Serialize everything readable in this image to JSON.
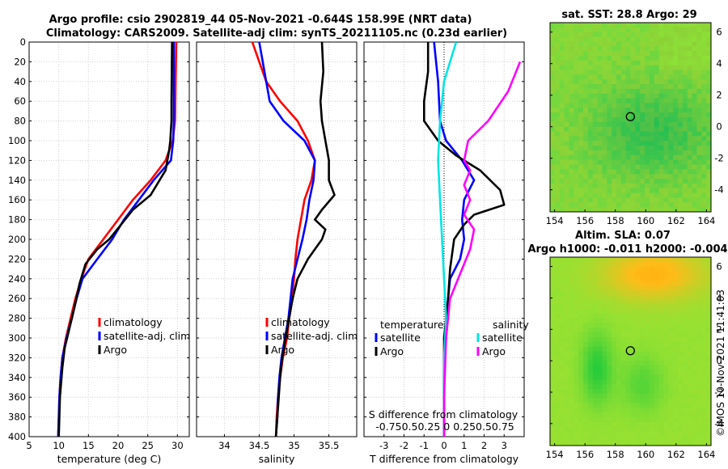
{
  "header": {
    "line1": "Argo profile: csio 2902819_44 05-Nov-2021 -0.644S 158.99E (NRT data)",
    "line2": "Climatology: CARS2009. Satellite-adj clim: synTS_20211105.nc (0.23d earlier)"
  },
  "credit": "©IMOS 10-Nov-2021 11:41:03",
  "colors": {
    "climatology": "#ff0000",
    "satellite": "#0000ff",
    "argo": "#000000",
    "sat_salinity": "#00e5e5",
    "argo_salinity": "#ff00ff",
    "zero_line": "#000000"
  },
  "chart_data": [
    {
      "type": "line",
      "id": "temperature",
      "xlabel": "temperature (deg C)",
      "ylabel": "depth",
      "xlim": [
        5,
        32
      ],
      "ylim": [
        0,
        400
      ],
      "xticks": [
        5,
        10,
        15,
        20,
        25,
        30
      ],
      "yticks": [
        0,
        20,
        40,
        60,
        80,
        100,
        120,
        140,
        160,
        180,
        200,
        220,
        240,
        260,
        280,
        300,
        320,
        340,
        360,
        380,
        400
      ],
      "legend": [
        "climatology",
        "satellite-adj. clim",
        "Argo"
      ],
      "legend_position": "lower-right",
      "grid": true,
      "series": [
        {
          "name": "climatology",
          "color_key": "climatology",
          "points": [
            [
              29.8,
              0
            ],
            [
              29.7,
              40
            ],
            [
              29.6,
              80
            ],
            [
              29.2,
              100
            ],
            [
              28.0,
              120
            ],
            [
              25.5,
              140
            ],
            [
              22.5,
              160
            ],
            [
              20.0,
              180
            ],
            [
              17.5,
              200
            ],
            [
              15.0,
              220
            ],
            [
              13.8,
              240
            ],
            [
              12.8,
              260
            ],
            [
              12.0,
              280
            ],
            [
              11.2,
              300
            ],
            [
              10.6,
              320
            ],
            [
              10.3,
              340
            ],
            [
              10.1,
              360
            ],
            [
              10.0,
              380
            ],
            [
              9.9,
              400
            ]
          ]
        },
        {
          "name": "satellite-adj. clim",
          "color_key": "satellite",
          "points": [
            [
              29.4,
              0
            ],
            [
              29.4,
              40
            ],
            [
              29.4,
              80
            ],
            [
              29.3,
              100
            ],
            [
              28.9,
              120
            ],
            [
              26.0,
              140
            ],
            [
              23.5,
              160
            ],
            [
              21.0,
              180
            ],
            [
              19.0,
              200
            ],
            [
              16.5,
              220
            ],
            [
              14.0,
              240
            ],
            [
              13.0,
              260
            ],
            [
              12.2,
              280
            ],
            [
              11.3,
              300
            ],
            [
              10.6,
              320
            ],
            [
              10.3,
              340
            ],
            [
              10.1,
              360
            ],
            [
              10.0,
              380
            ],
            [
              9.9,
              400
            ]
          ]
        },
        {
          "name": "Argo",
          "color_key": "argo",
          "points": [
            [
              29.1,
              0
            ],
            [
              29.0,
              60
            ],
            [
              29.0,
              80
            ],
            [
              28.8,
              100
            ],
            [
              28.6,
              110
            ],
            [
              28.3,
              120
            ],
            [
              28.0,
              130
            ],
            [
              25.5,
              155
            ],
            [
              22.5,
              170
            ],
            [
              20.5,
              185
            ],
            [
              18.5,
              200
            ],
            [
              16.5,
              210
            ],
            [
              14.5,
              225
            ],
            [
              13.5,
              245
            ],
            [
              12.6,
              270
            ],
            [
              11.8,
              290
            ],
            [
              11.0,
              310
            ],
            [
              10.6,
              330
            ],
            [
              10.2,
              360
            ],
            [
              10.0,
              400
            ]
          ]
        }
      ]
    },
    {
      "type": "line",
      "id": "salinity",
      "xlabel": "salinity",
      "ylabel": "",
      "xlim": [
        33.6,
        35.9
      ],
      "ylim": [
        0,
        400
      ],
      "xticks": [
        34,
        34.5,
        35,
        35.5
      ],
      "legend": [
        "climatology",
        "satellite-adj. clim",
        "Argo"
      ],
      "legend_position": "lower-right",
      "grid": true,
      "series": [
        {
          "name": "climatology",
          "color_key": "climatology",
          "points": [
            [
              34.4,
              0
            ],
            [
              34.5,
              20
            ],
            [
              34.6,
              40
            ],
            [
              34.8,
              60
            ],
            [
              35.05,
              80
            ],
            [
              35.2,
              100
            ],
            [
              35.3,
              120
            ],
            [
              35.25,
              140
            ],
            [
              35.15,
              160
            ],
            [
              35.1,
              180
            ],
            [
              35.05,
              200
            ],
            [
              35.02,
              220
            ],
            [
              35.0,
              240
            ],
            [
              34.97,
              260
            ],
            [
              34.93,
              280
            ],
            [
              34.9,
              300
            ],
            [
              34.84,
              320
            ],
            [
              34.8,
              340
            ],
            [
              34.77,
              360
            ],
            [
              34.75,
              380
            ],
            [
              34.74,
              400
            ]
          ]
        },
        {
          "name": "satellite-adj. clim",
          "color_key": "satellite",
          "points": [
            [
              34.5,
              0
            ],
            [
              34.55,
              20
            ],
            [
              34.6,
              40
            ],
            [
              34.65,
              60
            ],
            [
              34.85,
              80
            ],
            [
              35.15,
              100
            ],
            [
              35.3,
              120
            ],
            [
              35.28,
              140
            ],
            [
              35.22,
              160
            ],
            [
              35.18,
              180
            ],
            [
              35.12,
              200
            ],
            [
              35.05,
              220
            ],
            [
              34.98,
              240
            ],
            [
              34.95,
              260
            ],
            [
              34.92,
              280
            ],
            [
              34.87,
              300
            ],
            [
              34.82,
              320
            ],
            [
              34.79,
              340
            ],
            [
              34.77,
              360
            ],
            [
              34.76,
              380
            ],
            [
              34.74,
              400
            ]
          ]
        },
        {
          "name": "Argo",
          "color_key": "argo",
          "points": [
            [
              35.4,
              0
            ],
            [
              35.42,
              30
            ],
            [
              35.38,
              60
            ],
            [
              35.4,
              80
            ],
            [
              35.45,
              100
            ],
            [
              35.5,
              120
            ],
            [
              35.5,
              140
            ],
            [
              35.58,
              155
            ],
            [
              35.4,
              170
            ],
            [
              35.3,
              180
            ],
            [
              35.45,
              190
            ],
            [
              35.4,
              200
            ],
            [
              35.3,
              210
            ],
            [
              35.2,
              220
            ],
            [
              35.05,
              240
            ],
            [
              34.98,
              260
            ],
            [
              34.93,
              280
            ],
            [
              34.88,
              300
            ],
            [
              34.83,
              320
            ],
            [
              34.8,
              340
            ],
            [
              34.78,
              360
            ],
            [
              34.76,
              380
            ],
            [
              34.74,
              400
            ]
          ]
        }
      ]
    },
    {
      "type": "line",
      "id": "difference",
      "xlabel": "T difference from climatology",
      "xlabel_top": "S difference from climatology",
      "top_tick_labels": [
        "-0.75",
        "0.5",
        "0.25",
        "0",
        "0.25",
        "0.5",
        "0.75"
      ],
      "top_tick_text": "-0.750.50.25  0  0.250.50.75",
      "xlim": [
        -4,
        4
      ],
      "ylim": [
        0,
        400
      ],
      "xticks": [
        -3,
        -2,
        -1,
        0,
        1,
        2,
        3
      ],
      "grid": true,
      "legend_groups": [
        {
          "title": "temperature",
          "entries": [
            "satellite",
            "Argo"
          ]
        },
        {
          "title": "salinity",
          "entries": [
            "satellite",
            "Argo"
          ]
        }
      ],
      "legend_position": "lower-center",
      "series": [
        {
          "name": "temperature satellite",
          "color_key": "satellite",
          "points": [
            [
              -0.5,
              0
            ],
            [
              -0.3,
              40
            ],
            [
              -0.2,
              80
            ],
            [
              0.1,
              100
            ],
            [
              0.9,
              120
            ],
            [
              1.5,
              140
            ],
            [
              1.0,
              160
            ],
            [
              0.9,
              180
            ],
            [
              1.0,
              200
            ],
            [
              0.8,
              220
            ],
            [
              0.3,
              240
            ],
            [
              0.2,
              260
            ],
            [
              0.1,
              280
            ],
            [
              0.1,
              300
            ],
            [
              0.0,
              320
            ],
            [
              0.0,
              340
            ],
            [
              0.0,
              360
            ],
            [
              0.0,
              380
            ],
            [
              0.0,
              400
            ]
          ]
        },
        {
          "name": "temperature Argo",
          "color_key": "argo",
          "points": [
            [
              -0.8,
              0
            ],
            [
              -0.8,
              30
            ],
            [
              -1.0,
              60
            ],
            [
              -1.0,
              80
            ],
            [
              -0.3,
              100
            ],
            [
              0.6,
              115
            ],
            [
              1.8,
              130
            ],
            [
              2.8,
              150
            ],
            [
              3.0,
              165
            ],
            [
              1.5,
              175
            ],
            [
              1.0,
              185
            ],
            [
              0.5,
              200
            ],
            [
              0.3,
              230
            ],
            [
              0.2,
              260
            ],
            [
              0.0,
              300
            ],
            [
              0.0,
              340
            ],
            [
              0.0,
              400
            ]
          ]
        },
        {
          "name": "salinity satellite",
          "color_key": "sat_salinity",
          "points": [
            [
              0.6,
              0
            ],
            [
              0.3,
              20
            ],
            [
              0.0,
              40
            ],
            [
              -0.2,
              80
            ],
            [
              -0.3,
              120
            ],
            [
              -0.2,
              160
            ],
            [
              -0.1,
              200
            ],
            [
              0.0,
              240
            ],
            [
              0.1,
              280
            ],
            [
              0.0,
              320
            ],
            [
              0.0,
              360
            ],
            [
              0.0,
              400
            ]
          ]
        },
        {
          "name": "salinity Argo",
          "color_key": "argo_salinity",
          "points": [
            [
              3.8,
              20
            ],
            [
              3.2,
              50
            ],
            [
              2.2,
              80
            ],
            [
              1.2,
              100
            ],
            [
              1.0,
              120
            ],
            [
              1.3,
              130
            ],
            [
              1.0,
              145
            ],
            [
              1.3,
              160
            ],
            [
              1.0,
              175
            ],
            [
              1.5,
              190
            ],
            [
              1.3,
              210
            ],
            [
              0.9,
              230
            ],
            [
              0.3,
              260
            ],
            [
              0.1,
              300
            ],
            [
              0.0,
              360
            ],
            [
              0.0,
              400
            ]
          ]
        }
      ]
    },
    {
      "type": "heatmap",
      "id": "sat-sst-map",
      "title": "sat. SST: 28.8 Argo: 29",
      "xlim": [
        153.7,
        164.3
      ],
      "ylim": [
        -5.4,
        6.6
      ],
      "xticks": [
        154,
        156,
        158,
        160,
        162,
        164
      ],
      "yticks": [
        -4,
        -2,
        0,
        2,
        4,
        6
      ],
      "marker": {
        "lon": 158.99,
        "lat": 0.64
      }
    },
    {
      "type": "heatmap",
      "id": "sla-map",
      "title": "Altim. SLA: 0.07",
      "subtitle": "Argo h1000: -0.011 h2000: -0.004",
      "xlim": [
        153.7,
        164.3
      ],
      "ylim": [
        -5.4,
        6.6
      ],
      "xticks": [
        154,
        156,
        158,
        160,
        162,
        164
      ],
      "yticks": [
        -4,
        -2,
        0,
        2,
        4,
        6
      ],
      "marker": {
        "lon": 158.99,
        "lat": 0.64
      }
    }
  ]
}
